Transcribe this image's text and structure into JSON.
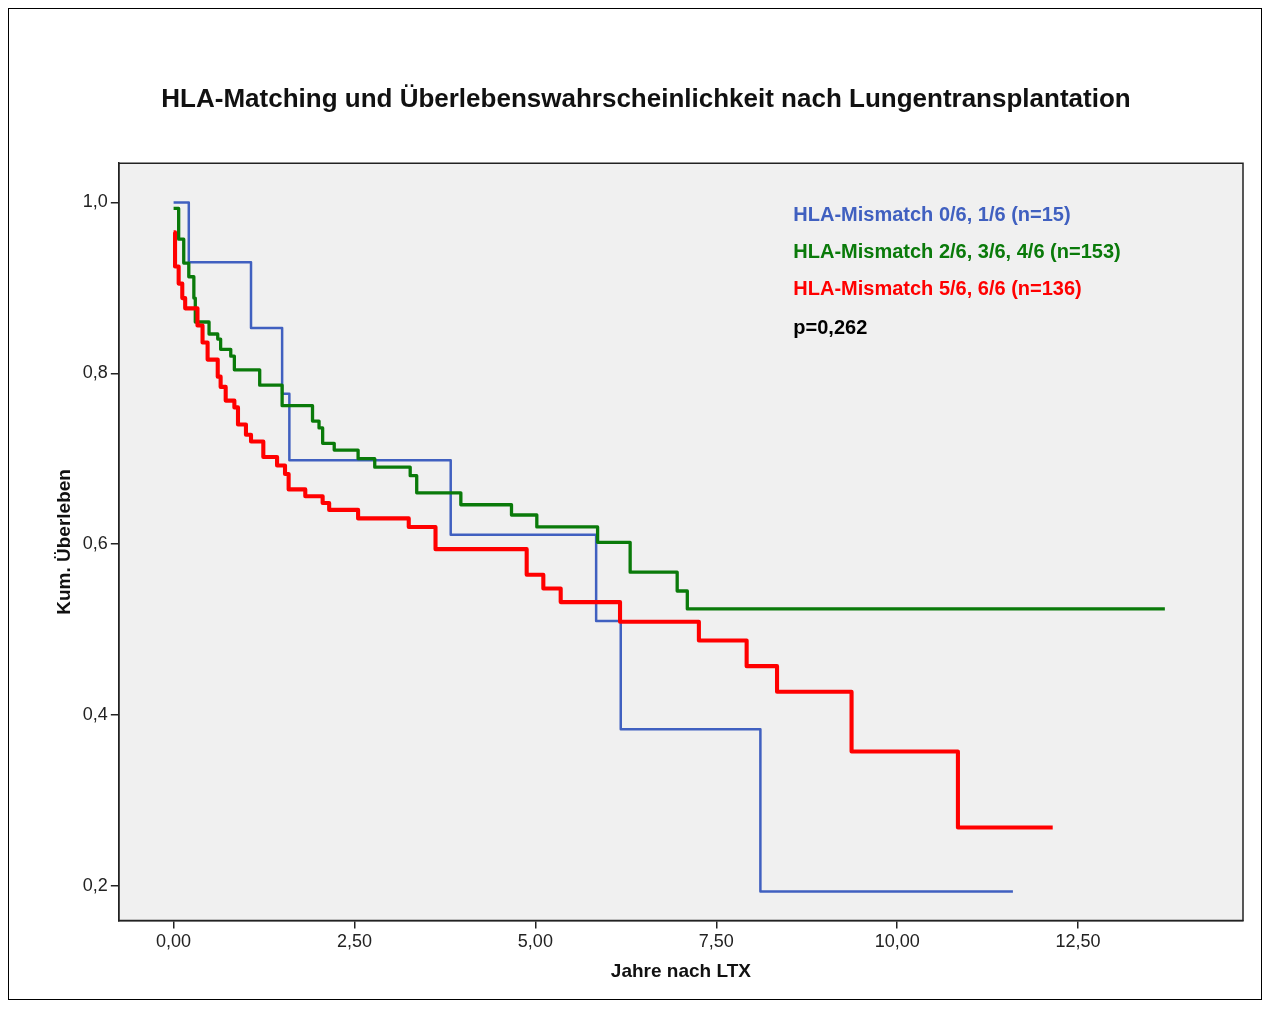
{
  "chart_data": {
    "type": "step",
    "title": "HLA-Matching und Überlebenswahrscheinlichkeit nach Lungentransplantation",
    "xlabel": "Jahre nach LTX",
    "ylabel": "Kum. Überleben",
    "series": [
      {
        "name": "HLA-Mismatch 0/6, 1/6 (n=15)",
        "color": "#4060c0",
        "x": [
          0,
          0.21,
          1.07,
          1.5,
          1.6,
          3.83,
          5.84,
          6.18,
          8.11,
          11.6
        ],
        "values": [
          1.0,
          0.93,
          0.853,
          0.776,
          0.698,
          0.611,
          0.51,
          0.383,
          0.193,
          0.193
        ]
      },
      {
        "name": "HLA-Mismatch 2/6, 3/6, 4/6 (n=153)",
        "color": "#0a7a0a",
        "x": [
          0,
          0.07,
          0.14,
          0.21,
          0.28,
          0.3,
          0.49,
          0.61,
          0.65,
          0.79,
          0.84,
          1.19,
          1.5,
          1.92,
          2.01,
          2.06,
          2.22,
          2.55,
          2.78,
          3.27,
          3.36,
          3.97,
          4.67,
          5.02,
          5.86,
          6.31,
          6.96,
          7.1,
          13.7
        ],
        "values": [
          0.993,
          0.957,
          0.929,
          0.913,
          0.888,
          0.86,
          0.846,
          0.84,
          0.828,
          0.82,
          0.804,
          0.786,
          0.762,
          0.744,
          0.736,
          0.718,
          0.71,
          0.7,
          0.69,
          0.68,
          0.66,
          0.646,
          0.634,
          0.62,
          0.602,
          0.567,
          0.545,
          0.524,
          0.524
        ]
      },
      {
        "name": "HLA-Mismatch 5/6, 6/6 (n=136)",
        "color": "#ff0000",
        "x": [
          0,
          0.02,
          0.07,
          0.12,
          0.16,
          0.33,
          0.4,
          0.47,
          0.61,
          0.65,
          0.72,
          0.84,
          0.89,
          1.0,
          1.07,
          1.24,
          1.43,
          1.54,
          1.59,
          1.82,
          2.06,
          2.15,
          2.55,
          3.25,
          3.62,
          4.88,
          5.11,
          5.35,
          6.17,
          7.26,
          7.92,
          8.34,
          9.37,
          10.84,
          12.15
        ],
        "values": [
          0.965,
          0.925,
          0.905,
          0.888,
          0.876,
          0.856,
          0.836,
          0.816,
          0.796,
          0.784,
          0.768,
          0.76,
          0.74,
          0.728,
          0.72,
          0.702,
          0.692,
          0.682,
          0.664,
          0.656,
          0.648,
          0.64,
          0.63,
          0.62,
          0.594,
          0.564,
          0.548,
          0.532,
          0.509,
          0.487,
          0.457,
          0.427,
          0.357,
          0.268,
          0.268
        ]
      }
    ],
    "annotations": [
      "p=0,262"
    ],
    "xlim": [
      -0.757,
      14.78
    ],
    "xticks": [
      {
        "value": 0,
        "label": "0,00"
      },
      {
        "value": 2.5,
        "label": "2,50"
      },
      {
        "value": 5,
        "label": "5,00"
      },
      {
        "value": 7.5,
        "label": "7,50"
      },
      {
        "value": 10,
        "label": "10,00"
      },
      {
        "value": 12.5,
        "label": "12,50"
      }
    ],
    "ylim": [
      0.159,
      1.046
    ],
    "yticks": [
      {
        "value": 0.2,
        "label": "0,2"
      },
      {
        "value": 0.4,
        "label": "0,4"
      },
      {
        "value": 0.6,
        "label": "0,6"
      },
      {
        "value": 0.8,
        "label": "0,8"
      },
      {
        "value": 1.0,
        "label": "1,0"
      }
    ],
    "grid": false,
    "legend": "top right",
    "marker": "none",
    "line_style": "solid"
  }
}
